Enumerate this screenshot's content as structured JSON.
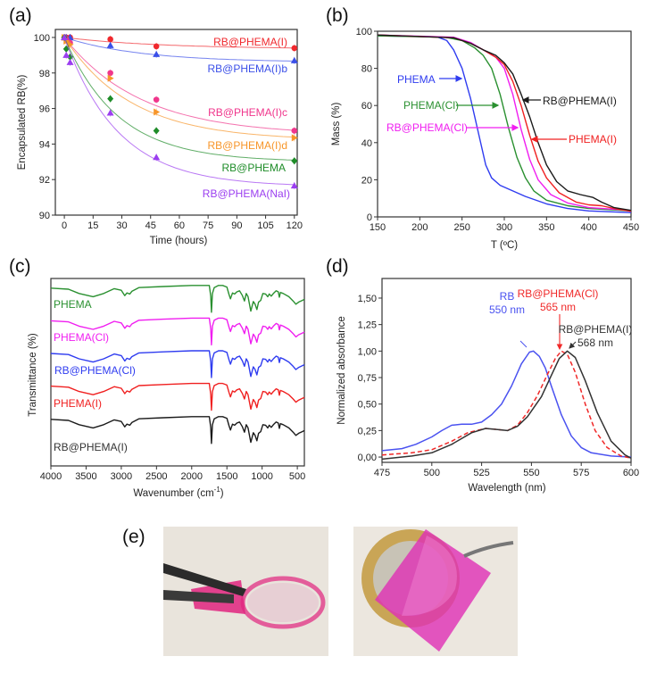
{
  "panel_labels": {
    "a": "(a)",
    "b": "(b)",
    "c": "(c)",
    "d": "(d)",
    "e": "(e)"
  },
  "chart_data": [
    {
      "id": "a",
      "type": "scatter",
      "title": "",
      "xlabel": "Time (hours)",
      "ylabel": "Encapsulated RB(%)",
      "xlim": [
        -4.7,
        121.5
      ],
      "ylim": [
        90,
        100.45
      ],
      "xticks": [
        0,
        15,
        30,
        45,
        60,
        75,
        90,
        105,
        120
      ],
      "yticks": [
        90,
        92,
        94,
        96,
        98,
        100
      ],
      "x": [
        0,
        1,
        3,
        24,
        48,
        120
      ],
      "series": [
        {
          "name": "RB@PHEMA(I)",
          "color": "#f0282d",
          "marker": "circle",
          "values": [
            100,
            100,
            100,
            99.9,
            99.5,
            99.4
          ],
          "fit": {
            "plateau": 99.35,
            "tau": 50
          }
        },
        {
          "name": "RB@PHEMA(I)b",
          "color": "#3a4fe8",
          "marker": "triangle",
          "values": [
            100,
            100,
            100,
            99.55,
            99.05,
            98.7
          ],
          "fit": {
            "plateau": 98.6,
            "tau": 40
          }
        },
        {
          "name": "RB@PHEMA(I)c",
          "color": "#f0368c",
          "marker": "circle",
          "values": [
            100,
            99.9,
            99.7,
            98.0,
            96.5,
            94.75
          ],
          "fit": {
            "plateau": 94.5,
            "tau": 40
          }
        },
        {
          "name": "RB@PHEMA(I)d",
          "color": "#f7962a",
          "marker": "triangle-right",
          "values": [
            100,
            99.8,
            99.6,
            97.7,
            95.8,
            94.35
          ],
          "fit": {
            "plateau": 94.2,
            "tau": 35
          }
        },
        {
          "name": "RB@PHEMA",
          "color": "#1e8c28",
          "marker": "diamond",
          "values": [
            100,
            99.35,
            98.9,
            96.55,
            94.75,
            93.05
          ],
          "fit": {
            "plateau": 93.0,
            "tau": 28
          }
        },
        {
          "name": "RB@PHEMA(NaI)",
          "color": "#9b3ef0",
          "marker": "triangle",
          "values": [
            100,
            99.0,
            98.6,
            95.75,
            93.25,
            91.65
          ],
          "fit": {
            "plateau": 91.6,
            "tau": 28
          }
        }
      ]
    },
    {
      "id": "b",
      "type": "line",
      "xlabel": "T (ºC)",
      "ylabel": "Mass (%)",
      "xlim": [
        150,
        450
      ],
      "ylim": [
        0,
        100
      ],
      "xticks": [
        150,
        200,
        250,
        300,
        350,
        400,
        450
      ],
      "yticks": [
        0,
        20,
        40,
        60,
        80,
        100
      ],
      "series": [
        {
          "name": "PHEMA",
          "color": "#2f3cf0",
          "points": [
            [
              150,
              97.5
            ],
            [
              220,
              97
            ],
            [
              232,
              95
            ],
            [
              240,
              90
            ],
            [
              250,
              80
            ],
            [
              260,
              64
            ],
            [
              270,
              44
            ],
            [
              278,
              28
            ],
            [
              285,
              21
            ],
            [
              295,
              17
            ],
            [
              310,
              14
            ],
            [
              325,
              11
            ],
            [
              350,
              7
            ],
            [
              375,
              4.5
            ],
            [
              400,
              3.2
            ],
            [
              450,
              2.3
            ]
          ]
        },
        {
          "name": "PHEMA(Cl)",
          "color": "#2a9030",
          "points": [
            [
              150,
              97.5
            ],
            [
              230,
              96.8
            ],
            [
              250,
              95
            ],
            [
              265,
              91
            ],
            [
              275,
              87
            ],
            [
              285,
              80
            ],
            [
              295,
              66
            ],
            [
              305,
              48
            ],
            [
              315,
              32
            ],
            [
              325,
              21
            ],
            [
              335,
              14
            ],
            [
              350,
              9
            ],
            [
              375,
              6
            ],
            [
              400,
              4.5
            ],
            [
              450,
              3.2
            ]
          ]
        },
        {
          "name": "RB@PHEMA(Cl)",
          "color": "#f01ef0",
          "points": [
            [
              150,
              98
            ],
            [
              240,
              96.8
            ],
            [
              260,
              94
            ],
            [
              275,
              90
            ],
            [
              290,
              86
            ],
            [
              300,
              80
            ],
            [
              310,
              66
            ],
            [
              320,
              47
            ],
            [
              330,
              31
            ],
            [
              340,
              20
            ],
            [
              355,
              12
            ],
            [
              375,
              7.5
            ],
            [
              400,
              5
            ],
            [
              450,
              3.5
            ]
          ]
        },
        {
          "name": "PHEMA(I)",
          "color": "#f02020",
          "points": [
            [
              150,
              98
            ],
            [
              240,
              96.5
            ],
            [
              260,
              93.5
            ],
            [
              275,
              90
            ],
            [
              290,
              86
            ],
            [
              300,
              82
            ],
            [
              310,
              73
            ],
            [
              320,
              60
            ],
            [
              330,
              44
            ],
            [
              340,
              30
            ],
            [
              350,
              21
            ],
            [
              365,
              13
            ],
            [
              385,
              8
            ],
            [
              400,
              6.5
            ],
            [
              415,
              6
            ],
            [
              430,
              4.5
            ],
            [
              450,
              3
            ]
          ]
        },
        {
          "name": "RB@PHEMA(I)",
          "color": "#1a1a1a",
          "points": [
            [
              150,
              98
            ],
            [
              240,
              96.5
            ],
            [
              260,
              93.5
            ],
            [
              275,
              90
            ],
            [
              290,
              87
            ],
            [
              300,
              83
            ],
            [
              310,
              77
            ],
            [
              320,
              66
            ],
            [
              330,
              54
            ],
            [
              340,
              40
            ],
            [
              350,
              28
            ],
            [
              362,
              19
            ],
            [
              375,
              14
            ],
            [
              390,
              12
            ],
            [
              405,
              10.5
            ],
            [
              415,
              8
            ],
            [
              430,
              5
            ],
            [
              450,
              3.5
            ]
          ]
        }
      ],
      "annotations": [
        "PHEMA",
        "PHEMA(Cl)",
        "RB@PHEMA(Cl)",
        "RB@PHEMA(I)",
        "PHEMA(I)"
      ]
    },
    {
      "id": "c",
      "type": "line",
      "xlabel": "Wavenumber (cm",
      "xlabel_sup": "-1",
      "xlabel_end": ")",
      "ylabel": "Transmittance (%)",
      "xlim": [
        4000,
        400
      ],
      "ylim": [
        0,
        35
      ],
      "xticks": [
        4000,
        3500,
        3000,
        2500,
        2000,
        1500,
        1000,
        500
      ],
      "spectrum_shape": [
        [
          4000,
          0
        ],
        [
          3750,
          -0.2
        ],
        [
          3600,
          -1.0
        ],
        [
          3400,
          -1.6
        ],
        [
          3250,
          -1.0
        ],
        [
          3100,
          -0.1
        ],
        [
          3000,
          -0.4
        ],
        [
          2950,
          -1.4
        ],
        [
          2920,
          -0.9
        ],
        [
          2880,
          -1.1
        ],
        [
          2850,
          -0.6
        ],
        [
          2750,
          0.1
        ],
        [
          2400,
          0.3
        ],
        [
          2000,
          0.5
        ],
        [
          1750,
          0.5
        ],
        [
          1730,
          -1.5
        ],
        [
          1720,
          -4.5
        ],
        [
          1705,
          -1.0
        ],
        [
          1680,
          0.1
        ],
        [
          1620,
          0.5
        ],
        [
          1560,
          0.5
        ],
        [
          1500,
          0.2
        ],
        [
          1470,
          -1.2
        ],
        [
          1450,
          -2.0
        ],
        [
          1420,
          -0.9
        ],
        [
          1390,
          -1.1
        ],
        [
          1360,
          -0.7
        ],
        [
          1320,
          -0.5
        ],
        [
          1280,
          -1.4
        ],
        [
          1250,
          -2.4
        ],
        [
          1225,
          -1.0
        ],
        [
          1200,
          -1.6
        ],
        [
          1160,
          -4.3
        ],
        [
          1125,
          -2.5
        ],
        [
          1100,
          -3.0
        ],
        [
          1075,
          -4.0
        ],
        [
          1050,
          -2.6
        ],
        [
          1020,
          -2.3
        ],
        [
          990,
          -1.0
        ],
        [
          950,
          -1.1
        ],
        [
          920,
          -1.6
        ],
        [
          900,
          -1.1
        ],
        [
          870,
          -1.5
        ],
        [
          840,
          -1.0
        ],
        [
          800,
          -0.5
        ],
        [
          770,
          -0.7
        ],
        [
          755,
          -1.7
        ],
        [
          740,
          -0.8
        ],
        [
          700,
          -1.0
        ],
        [
          620,
          -1.6
        ],
        [
          560,
          -2.4
        ],
        [
          520,
          -3.0
        ],
        [
          480,
          -2.6
        ],
        [
          430,
          -2.3
        ],
        [
          400,
          -2.1
        ]
      ],
      "series": [
        {
          "name": "PHEMA",
          "color": "#2a9030",
          "offset": 33.2
        },
        {
          "name": "PHEMA(Cl)",
          "color": "#f01ef0",
          "offset": 27.1
        },
        {
          "name": "RB@PHEMA(Cl)",
          "color": "#2f3cf0",
          "offset": 21.0
        },
        {
          "name": "PHEMA(I)",
          "color": "#f02020",
          "offset": 14.9
        },
        {
          "name": "RB@PHEMA(I)",
          "color": "#1a1a1a",
          "offset": 8.7
        }
      ]
    },
    {
      "id": "d",
      "type": "line",
      "xlabel": "Wavelength (nm)",
      "ylabel": "Normalized absorbance",
      "xlim": [
        475,
        600
      ],
      "ylim": [
        -0.05,
        1.685
      ],
      "xticks": [
        475,
        500,
        525,
        550,
        575,
        600
      ],
      "yticks": [
        0,
        0.25,
        0.5,
        0.75,
        1.0,
        1.25,
        1.5
      ],
      "ytick_labels": [
        "0,00",
        "0,25",
        "0,50",
        "0,75",
        "1,00",
        "1,25",
        "1,50"
      ],
      "series": [
        {
          "name": "RB",
          "peak_label": "550 nm",
          "color": "#4a52f0",
          "dashed": false,
          "points": [
            [
              475,
              0.06
            ],
            [
              485,
              0.08
            ],
            [
              492,
              0.12
            ],
            [
              500,
              0.19
            ],
            [
              505,
              0.25
            ],
            [
              510,
              0.3
            ],
            [
              515,
              0.31
            ],
            [
              520,
              0.31
            ],
            [
              525,
              0.33
            ],
            [
              530,
              0.4
            ],
            [
              535,
              0.5
            ],
            [
              540,
              0.67
            ],
            [
              545,
              0.88
            ],
            [
              549,
              0.99
            ],
            [
              551,
              1.0
            ],
            [
              554,
              0.95
            ],
            [
              557,
              0.84
            ],
            [
              560,
              0.67
            ],
            [
              565,
              0.4
            ],
            [
              570,
              0.2
            ],
            [
              575,
              0.09
            ],
            [
              580,
              0.04
            ],
            [
              590,
              0.01
            ],
            [
              600,
              0
            ]
          ]
        },
        {
          "name": "RB@PHEMA(Cl)",
          "peak_label": "565 nm",
          "color": "#f02828",
          "dashed": true,
          "points": [
            [
              475,
              0.02
            ],
            [
              490,
              0.04
            ],
            [
              500,
              0.07
            ],
            [
              510,
              0.15
            ],
            [
              518,
              0.23
            ],
            [
              527,
              0.27
            ],
            [
              533,
              0.26
            ],
            [
              538,
              0.25
            ],
            [
              543,
              0.3
            ],
            [
              548,
              0.42
            ],
            [
              553,
              0.58
            ],
            [
              558,
              0.78
            ],
            [
              562,
              0.93
            ],
            [
              565,
              1.0
            ],
            [
              568,
              0.97
            ],
            [
              572,
              0.8
            ],
            [
              577,
              0.5
            ],
            [
              582,
              0.25
            ],
            [
              588,
              0.09
            ],
            [
              595,
              0.01
            ],
            [
              600,
              -0.01
            ]
          ]
        },
        {
          "name": "RB@PHEMA(I)",
          "peak_label": "568 nm",
          "color": "#333333",
          "dashed": false,
          "points": [
            [
              475,
              -0.02
            ],
            [
              490,
              0.01
            ],
            [
              500,
              0.04
            ],
            [
              510,
              0.12
            ],
            [
              520,
              0.23
            ],
            [
              527,
              0.27
            ],
            [
              533,
              0.26
            ],
            [
              538,
              0.25
            ],
            [
              543,
              0.29
            ],
            [
              548,
              0.38
            ],
            [
              555,
              0.57
            ],
            [
              560,
              0.77
            ],
            [
              564,
              0.93
            ],
            [
              568,
              1.0
            ],
            [
              572,
              0.94
            ],
            [
              577,
              0.72
            ],
            [
              583,
              0.42
            ],
            [
              590,
              0.15
            ],
            [
              597,
              0.02
            ],
            [
              600,
              -0.01
            ]
          ]
        }
      ]
    }
  ]
}
